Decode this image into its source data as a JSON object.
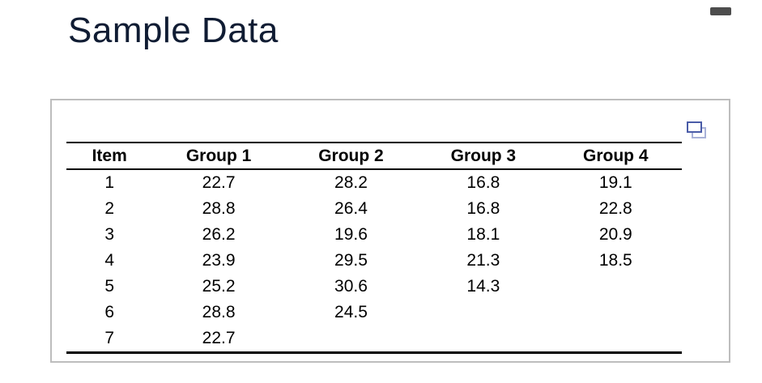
{
  "header": {
    "title": "Sample Data"
  },
  "window": {
    "pill_color": "#4d4d4d"
  },
  "panel": {
    "border_color": "#bdbdbd",
    "copy_icon": {
      "front_color": "#4a5ca8",
      "back_color": "#a9b2d8"
    }
  },
  "table": {
    "columns": [
      "Item",
      "Group 1",
      "Group 2",
      "Group 3",
      "Group 4"
    ],
    "rows": [
      [
        "1",
        "22.7",
        "28.2",
        "16.8",
        "19.1"
      ],
      [
        "2",
        "28.8",
        "26.4",
        "16.8",
        "22.8"
      ],
      [
        "3",
        "26.2",
        "19.6",
        "18.1",
        "20.9"
      ],
      [
        "4",
        "23.9",
        "29.5",
        "21.3",
        "18.5"
      ],
      [
        "5",
        "25.2",
        "30.6",
        "14.3",
        ""
      ],
      [
        "6",
        "28.8",
        "24.5",
        "",
        ""
      ],
      [
        "7",
        "22.7",
        "",
        "",
        ""
      ]
    ]
  },
  "colors": {
    "title": "#101c33",
    "table_rule": "#000000",
    "table_text": "#000000"
  }
}
